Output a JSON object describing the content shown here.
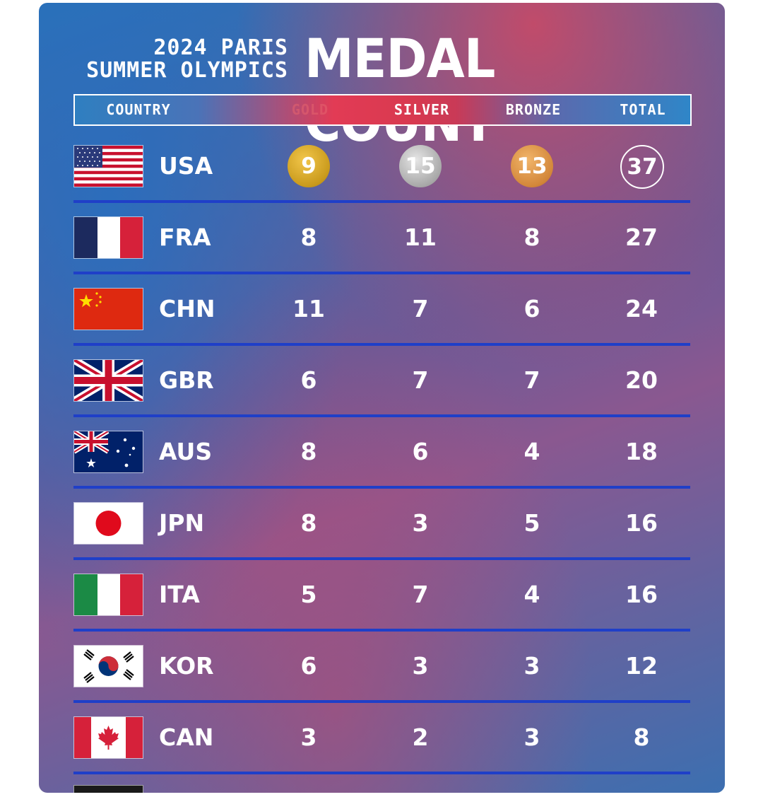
{
  "title": {
    "line1": "2024 PARIS",
    "line2": "SUMMER OLYMPICS",
    "main": "MEDAL COUNT"
  },
  "header": {
    "country": "COUNTRY",
    "gold": "GOLD",
    "silver": "SILVER",
    "bronze": "BRONZE",
    "total": "TOTAL"
  },
  "colors": {
    "gold_medal": "#d4a82a",
    "silver_medal": "#b0b0b0",
    "bronze_medal": "#d8893c",
    "row_divider": "#1f3fc8"
  },
  "rows": [
    {
      "code": "USA",
      "flag": "usa-flag-icon",
      "gold": "9",
      "silver": "15",
      "bronze": "13",
      "total": "37"
    },
    {
      "code": "FRA",
      "flag": "france-flag-icon",
      "gold": "8",
      "silver": "11",
      "bronze": "8",
      "total": "27"
    },
    {
      "code": "CHN",
      "flag": "china-flag-icon",
      "gold": "11",
      "silver": "7",
      "bronze": "6",
      "total": "24"
    },
    {
      "code": "GBR",
      "flag": "uk-flag-icon",
      "gold": "6",
      "silver": "7",
      "bronze": "7",
      "total": "20"
    },
    {
      "code": "AUS",
      "flag": "australia-flag-icon",
      "gold": "8",
      "silver": "6",
      "bronze": "4",
      "total": "18"
    },
    {
      "code": "JPN",
      "flag": "japan-flag-icon",
      "gold": "8",
      "silver": "3",
      "bronze": "5",
      "total": "16"
    },
    {
      "code": "ITA",
      "flag": "italy-flag-icon",
      "gold": "5",
      "silver": "7",
      "bronze": "4",
      "total": "16"
    },
    {
      "code": "KOR",
      "flag": "korea-flag-icon",
      "gold": "6",
      "silver": "3",
      "bronze": "3",
      "total": "12"
    },
    {
      "code": "CAN",
      "flag": "canada-flag-icon",
      "gold": "3",
      "silver": "2",
      "bronze": "3",
      "total": "8"
    }
  ]
}
